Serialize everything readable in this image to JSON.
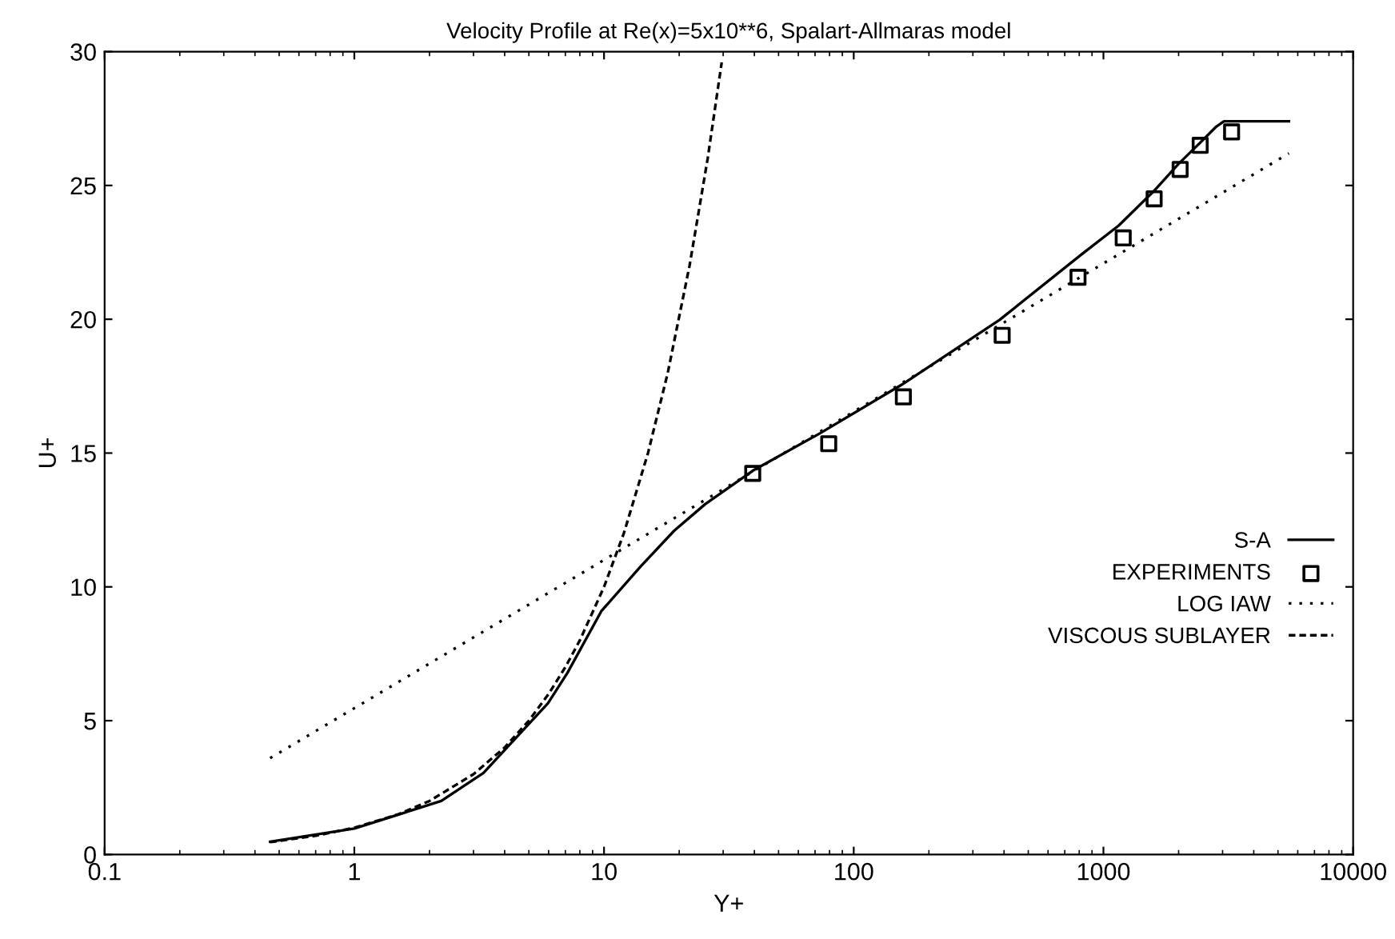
{
  "chart_data": {
    "type": "line",
    "title": "Velocity Profile at Re(x)=5x10**6, Spalart-Allmaras model",
    "xlabel": "Y+",
    "ylabel": "U+",
    "log": "x",
    "xlim": [
      0.1,
      10000
    ],
    "xticks": [
      0.1,
      1,
      10,
      100,
      1000,
      10000
    ],
    "ylim": [
      0,
      30
    ],
    "yticks": [
      0,
      5,
      10,
      15,
      20,
      25,
      30
    ],
    "grid": false,
    "legend": "right",
    "series": [
      {
        "name": "S-A",
        "color": "#000000",
        "line_style": "solid",
        "marker": "none",
        "x": [
          0.46,
          1,
          2.23,
          3.29,
          5.96,
          7.14,
          9.75,
          14.0,
          19.1,
          25.4,
          39.4,
          73.6,
          156,
          384,
          811,
          1151,
          1596,
          1995,
          2440,
          2830,
          3040,
          5530
        ],
        "values": [
          0.48,
          0.97,
          2.0,
          3.05,
          5.65,
          6.79,
          9.09,
          10.76,
          12.1,
          13.09,
          14.34,
          15.75,
          17.56,
          19.98,
          22.4,
          23.5,
          24.8,
          25.8,
          26.6,
          27.2,
          27.4,
          27.4
        ]
      },
      {
        "name": "EXPERIMENTS",
        "type": "scatter",
        "color": "#000000",
        "marker": "square",
        "x": [
          39.4,
          79.4,
          158,
          393,
          791,
          1200,
          1596,
          2028,
          2440,
          3260
        ],
        "values": [
          14.24,
          15.35,
          17.1,
          19.4,
          21.57,
          23.04,
          24.5,
          25.6,
          26.5,
          27.0
        ]
      },
      {
        "name": "LOG IAW",
        "type": "line",
        "color": "#000000",
        "line_style": "dotted",
        "marker": "none",
        "x": [
          0.46,
          5530
        ],
        "values": [
          3.6,
          26.2
        ]
      },
      {
        "name": "VISCOUS SUBLAYER",
        "type": "line",
        "color": "#000000",
        "line_style": "dashed",
        "marker": "none",
        "x": [
          0.46,
          0.7,
          1,
          1.5,
          2,
          3,
          4,
          5,
          6,
          7,
          8,
          10,
          12,
          15,
          18,
          22,
          26,
          29.6
        ],
        "values": [
          0.46,
          0.7,
          1,
          1.5,
          2,
          3,
          4,
          5,
          6,
          7,
          8,
          10,
          12,
          15,
          18,
          22,
          26,
          29.6
        ]
      }
    ]
  }
}
